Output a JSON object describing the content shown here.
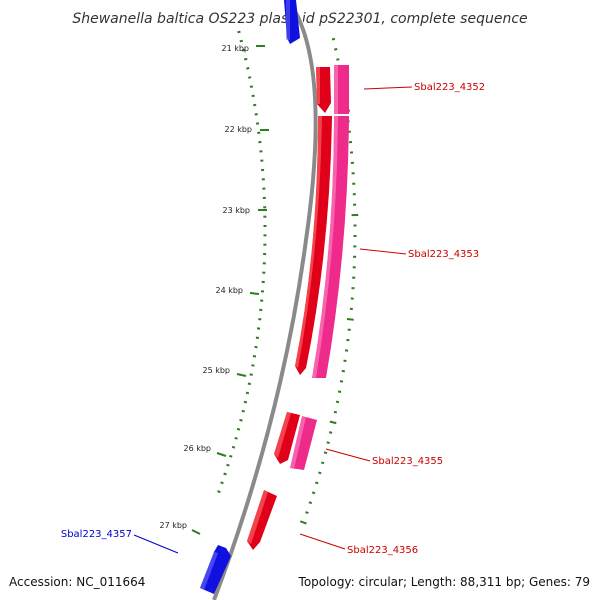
{
  "title": "Shewanella baltica OS223 plasmid pS22301, complete sequence",
  "accession_text": "Accession: NC_011664",
  "topology_text": "Topology: circular; Length: 88,311 bp; Genes: 79",
  "colors": {
    "backbone": "#8a8a8a",
    "tick": "#2e7d1e",
    "gene_forward": "#e0001a",
    "gene_forward_alt": "#ee2a8a",
    "gene_reverse": "#1010e0",
    "label_forward": "#cc0000",
    "label_reverse": "#0000cc"
  },
  "ticks": [
    {
      "label": "21 kbp"
    },
    {
      "label": "22 kbp"
    },
    {
      "label": "23 kbp"
    },
    {
      "label": "24 kbp"
    },
    {
      "label": "25 kbp"
    },
    {
      "label": "26 kbp"
    },
    {
      "label": "27 kbp"
    }
  ],
  "gene_labels": [
    {
      "text": "Sbal223_4352",
      "strand": "forward"
    },
    {
      "text": "Sbal223_4353",
      "strand": "forward"
    },
    {
      "text": "Sbal223_4355",
      "strand": "forward"
    },
    {
      "text": "Sbal223_4356",
      "strand": "forward"
    },
    {
      "text": "Sbal223_4357",
      "strand": "reverse"
    }
  ]
}
